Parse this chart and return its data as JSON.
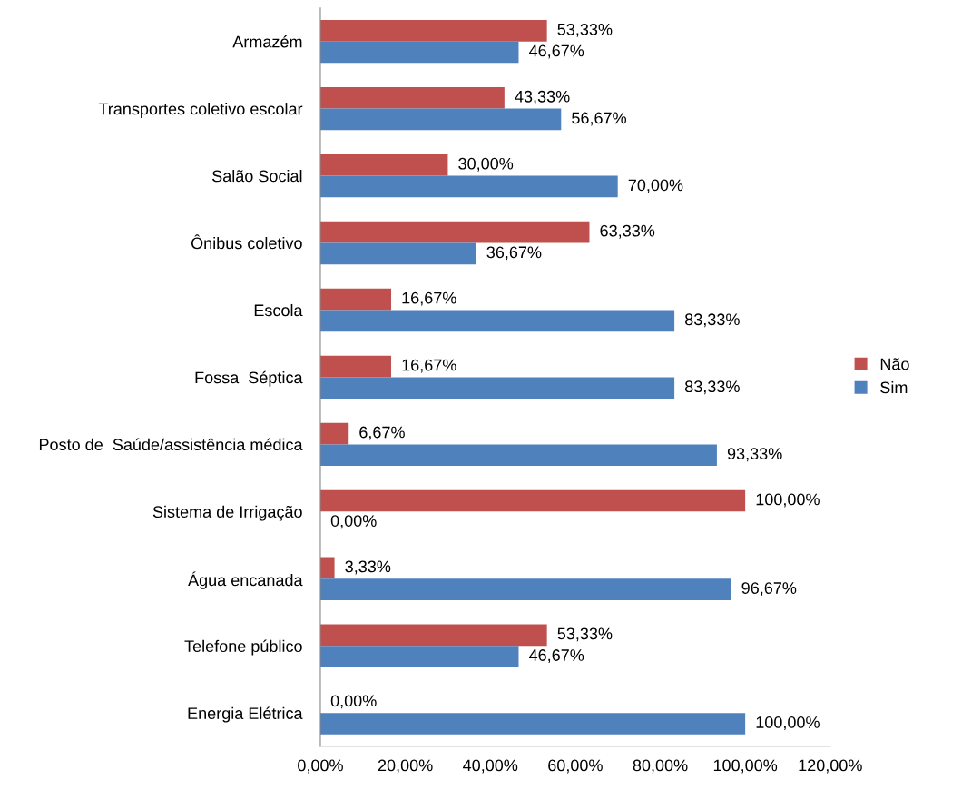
{
  "chart_data": {
    "type": "bar",
    "orientation": "horizontal",
    "categories": [
      "Armazém",
      "Transportes coletivo escolar",
      "Salão Social",
      "Ônibus coletivo",
      "Escola",
      "Fossa  Séptica",
      "Posto de  Saúde/assistência médica",
      "Sistema de Irrigação",
      "Água encanada",
      "Telefone público",
      "Energia Elétrica"
    ],
    "series": [
      {
        "name": "Não",
        "color": "#c0504d",
        "values": [
          53.33,
          43.33,
          30,
          63.33,
          16.67,
          16.67,
          6.67,
          100,
          3.33,
          53.33,
          0
        ],
        "value_labels": [
          "53,33%",
          "43,33%",
          "30,00%",
          "63,33%",
          "16,67%",
          "16,67%",
          "6,67%",
          "100,00%",
          "3,33%",
          "53,33%",
          "0,00%"
        ]
      },
      {
        "name": "Sim",
        "color": "#4f81bd",
        "values": [
          46.67,
          56.67,
          70,
          36.67,
          83.33,
          83.33,
          93.33,
          0,
          96.67,
          46.67,
          100
        ],
        "value_labels": [
          "46,67%",
          "56,67%",
          "70,00%",
          "36,67%",
          "83,33%",
          "83,33%",
          "93,33%",
          "0,00%",
          "96,67%",
          "46,67%",
          "100,00%"
        ]
      }
    ],
    "xlim": [
      0,
      120
    ],
    "xticks": [
      {
        "value": 0,
        "label": "0,00%"
      },
      {
        "value": 20,
        "label": "20,00%"
      },
      {
        "value": 40,
        "label": "40,00%"
      },
      {
        "value": 60,
        "label": "60,00%"
      },
      {
        "value": 80,
        "label": "80,00%"
      },
      {
        "value": 100,
        "label": "100,00%"
      },
      {
        "value": 120,
        "label": "120,00%"
      }
    ],
    "grid": false,
    "legend": "right"
  }
}
